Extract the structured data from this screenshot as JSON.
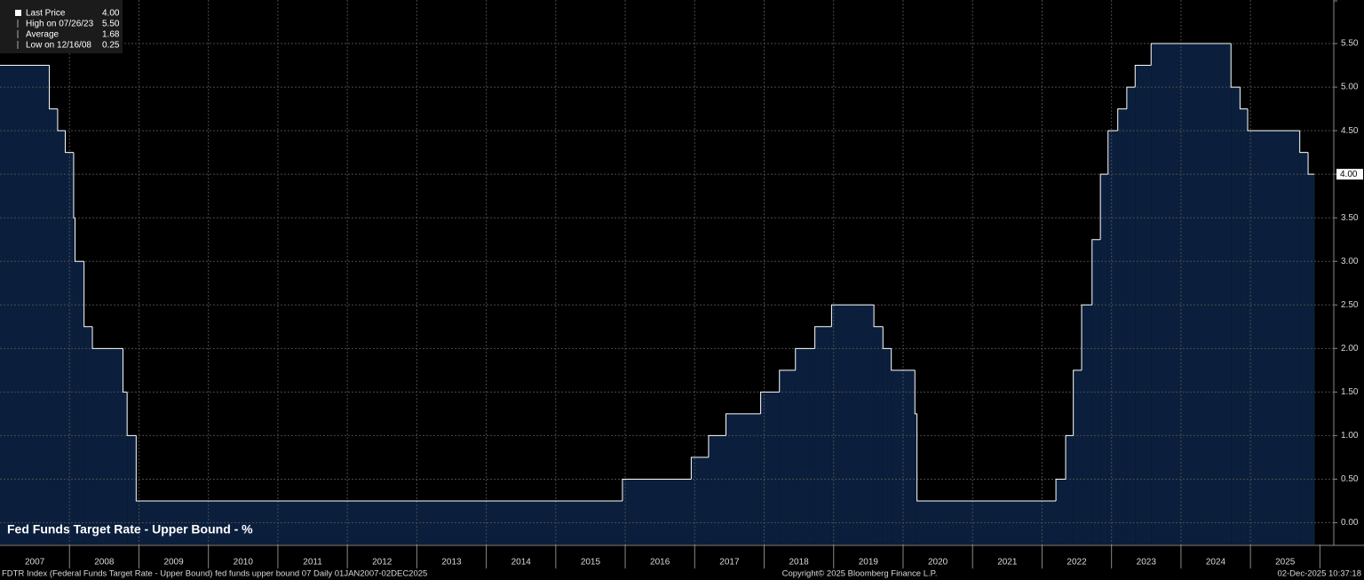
{
  "chart_data": {
    "type": "step-area",
    "title": "Fed Funds Target Rate - Upper Bound - %",
    "color": "#0b1f3d",
    "line_color": "#ffffff",
    "x": [
      2007,
      2007.71,
      2007.83,
      2007.94,
      2008.06,
      2008.08,
      2008.21,
      2008.33,
      2008.77,
      2008.83,
      2008.96,
      2015.96,
      2016.95,
      2017.2,
      2017.45,
      2017.95,
      2018.22,
      2018.45,
      2018.73,
      2018.97,
      2019.58,
      2019.71,
      2019.83,
      2020.17,
      2020.2,
      2022.2,
      2022.34,
      2022.45,
      2022.57,
      2022.72,
      2022.84,
      2022.95,
      2023.09,
      2023.22,
      2023.34,
      2023.57,
      2024.72,
      2024.85,
      2024.96,
      2025.71,
      2025.83,
      2025.92
    ],
    "values": [
      5.25,
      4.75,
      4.5,
      4.25,
      3.5,
      3,
      2.25,
      2,
      1.5,
      1,
      0.25,
      0.5,
      0.75,
      1,
      1.25,
      1.5,
      1.75,
      2,
      2.25,
      2.5,
      2.25,
      2,
      1.75,
      1.25,
      0.25,
      0.5,
      1,
      1.75,
      2.5,
      3.25,
      4,
      4.5,
      4.75,
      5,
      5.25,
      5.5,
      5,
      4.75,
      4.5,
      4.25,
      4,
      4
    ],
    "xlim": [
      2007,
      2026.2
    ],
    "xticks": [
      2007,
      2008,
      2009,
      2010,
      2011,
      2012,
      2013,
      2014,
      2015,
      2016,
      2017,
      2018,
      2019,
      2020,
      2021,
      2022,
      2023,
      2024,
      2025
    ],
    "ylim": [
      -0.25,
      6.0
    ],
    "yticks": [
      {
        "value": 0,
        "label": "0.00"
      },
      {
        "value": 0.5,
        "label": "0.50"
      },
      {
        "value": 1,
        "label": "1.00"
      },
      {
        "value": 1.5,
        "label": "1.50"
      },
      {
        "value": 2,
        "label": "2.00"
      },
      {
        "value": 2.5,
        "label": "2.50"
      },
      {
        "value": 3,
        "label": "3.00"
      },
      {
        "value": 3.5,
        "label": "3.50"
      },
      {
        "value": 4,
        "label": "4.00"
      },
      {
        "value": 4.5,
        "label": "4.50"
      },
      {
        "value": 5,
        "label": "5.00"
      },
      {
        "value": 5.5,
        "label": "5.50"
      }
    ],
    "grid": true,
    "legend": [
      {
        "label": "Last Price",
        "value": "4.00"
      },
      {
        "label": "High on 07/26/23",
        "value": "5.50"
      },
      {
        "label": "Average",
        "value": "1.68"
      },
      {
        "label": "Low on 12/16/08",
        "value": "0.25"
      }
    ]
  },
  "footer": {
    "left": "FDTR Index (Federal Funds Target Rate - Upper Bound) fed funds upper bound 07 Daily 01JAN2007-02DEC2025",
    "center": "Copyright© 2025 Bloomberg Finance L.P.",
    "right": "02-Dec-2025 10:37:18"
  }
}
